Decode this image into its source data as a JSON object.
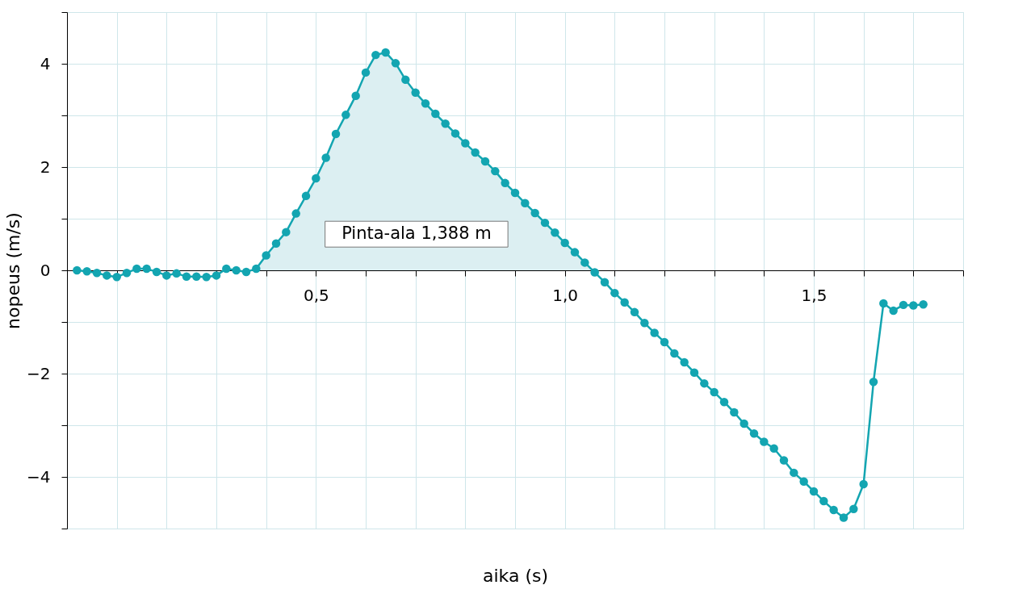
{
  "chart_data": {
    "type": "line",
    "xlabel": "aika (s)",
    "ylabel": "nopeus (m/s)",
    "x": [
      0.02,
      0.04,
      0.06,
      0.08,
      0.1,
      0.12,
      0.14,
      0.16,
      0.18,
      0.2,
      0.22,
      0.24,
      0.26,
      0.28,
      0.3,
      0.32,
      0.34,
      0.36,
      0.38,
      0.4,
      0.42,
      0.44,
      0.46,
      0.48,
      0.5,
      0.52,
      0.54,
      0.56,
      0.58,
      0.6,
      0.62,
      0.64,
      0.66,
      0.68,
      0.7,
      0.72,
      0.74,
      0.76,
      0.78,
      0.8,
      0.82,
      0.84,
      0.86,
      0.88,
      0.9,
      0.92,
      0.94,
      0.96,
      0.98,
      1.0,
      1.02,
      1.04,
      1.06,
      1.08,
      1.1,
      1.12,
      1.14,
      1.16,
      1.18,
      1.2,
      1.22,
      1.24,
      1.26,
      1.28,
      1.3,
      1.32,
      1.34,
      1.36,
      1.38,
      1.4,
      1.42,
      1.44,
      1.46,
      1.48,
      1.5,
      1.52,
      1.54,
      1.56,
      1.58,
      1.6,
      1.62,
      1.64,
      1.66,
      1.68,
      1.7,
      1.72
    ],
    "series": [
      {
        "type": "area",
        "color": "#dcefF2",
        "x": [
          0.38,
          0.4,
          0.42,
          0.44,
          0.46,
          0.48,
          0.5,
          0.52,
          0.54,
          0.56,
          0.58,
          0.6,
          0.62,
          0.64,
          0.66,
          0.68,
          0.7,
          0.72,
          0.74,
          0.76,
          0.78,
          0.8,
          0.82,
          0.84,
          0.86,
          0.88,
          0.9,
          0.92,
          0.94,
          0.96,
          0.98,
          1.0,
          1.02,
          1.04,
          1.06
        ],
        "values": [
          0.03,
          0.29,
          0.52,
          0.74,
          1.1,
          1.44,
          1.78,
          2.18,
          2.64,
          3.01,
          3.38,
          3.83,
          4.17,
          4.22,
          4.01,
          3.69,
          3.44,
          3.23,
          3.03,
          2.84,
          2.65,
          2.46,
          2.28,
          2.11,
          1.92,
          1.69,
          1.5,
          1.3,
          1.11,
          0.92,
          0.73,
          0.53,
          0.35,
          0.15,
          -0.04
        ]
      },
      {
        "type": "line",
        "color": "#13a5b1",
        "marker": "circle",
        "values": [
          0,
          -0.02,
          -0.05,
          -0.1,
          -0.13,
          -0.05,
          0.03,
          0.03,
          -0.03,
          -0.1,
          -0.06,
          -0.12,
          -0.12,
          -0.13,
          -0.1,
          0.03,
          0,
          -0.03,
          0.03,
          0.29,
          0.52,
          0.74,
          1.1,
          1.44,
          1.78,
          2.18,
          2.64,
          3.01,
          3.38,
          3.83,
          4.17,
          4.22,
          4.01,
          3.69,
          3.44,
          3.23,
          3.03,
          2.84,
          2.65,
          2.46,
          2.28,
          2.11,
          1.92,
          1.69,
          1.5,
          1.3,
          1.11,
          0.92,
          0.73,
          0.53,
          0.35,
          0.15,
          -0.04,
          -0.23,
          -0.44,
          -0.62,
          -0.81,
          -1.02,
          -1.21,
          -1.39,
          -1.61,
          -1.78,
          -1.98,
          -2.19,
          -2.36,
          -2.55,
          -2.75,
          -2.97,
          -3.16,
          -3.32,
          -3.45,
          -3.68,
          -3.92,
          -4.09,
          -4.28,
          -4.47,
          -4.64,
          -4.79,
          -4.62,
          -4.14,
          -2.16,
          -0.64,
          -0.78,
          -0.67,
          -0.68,
          -0.66
        ]
      }
    ],
    "xlim": [
      0,
      1.8
    ],
    "xticks": [
      {
        "value": 0.1,
        "label": null
      },
      {
        "value": 0.2,
        "label": null
      },
      {
        "value": 0.3,
        "label": null
      },
      {
        "value": 0.4,
        "label": null
      },
      {
        "value": 0.5,
        "label": "0,5"
      },
      {
        "value": 0.6,
        "label": null
      },
      {
        "value": 0.7,
        "label": null
      },
      {
        "value": 0.8,
        "label": null
      },
      {
        "value": 0.9,
        "label": null
      },
      {
        "value": 1.0,
        "label": "1,0"
      },
      {
        "value": 1.1,
        "label": null
      },
      {
        "value": 1.2,
        "label": null
      },
      {
        "value": 1.3,
        "label": null
      },
      {
        "value": 1.4,
        "label": null
      },
      {
        "value": 1.5,
        "label": "1,5"
      },
      {
        "value": 1.6,
        "label": null
      },
      {
        "value": 1.7,
        "label": null
      },
      {
        "value": 1.8,
        "label": null
      }
    ],
    "ylim": [
      -5,
      5
    ],
    "yticks": [
      {
        "value": -5,
        "label": null
      },
      {
        "value": -4,
        "label": "−4"
      },
      {
        "value": -3,
        "label": null
      },
      {
        "value": -2,
        "label": "−2"
      },
      {
        "value": -1,
        "label": null
      },
      {
        "value": 0,
        "label": "0"
      },
      {
        "value": 1,
        "label": null
      },
      {
        "value": 2,
        "label": "2"
      },
      {
        "value": 3,
        "label": null
      },
      {
        "value": 4,
        "label": "4"
      },
      {
        "value": 5,
        "label": null
      }
    ],
    "grid": true,
    "line_style": "solid",
    "annotations": [
      "Pinta-ala 1,388 m"
    ]
  }
}
